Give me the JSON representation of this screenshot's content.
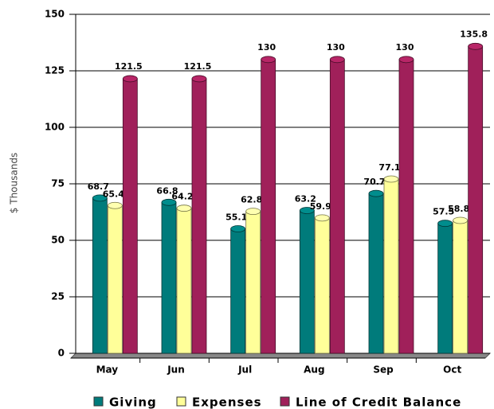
{
  "chart_data": {
    "type": "bar",
    "y_axis_label": "$ Thousands",
    "categories": [
      "May",
      "Jun",
      "Jul",
      "Aug",
      "Sep",
      "Oct"
    ],
    "series": [
      {
        "name": "Giving",
        "color": "#007b7b",
        "values": [
          68.7,
          66.8,
          55.1,
          63.2,
          70.7,
          57.5
        ]
      },
      {
        "name": "Expenses",
        "color": "#ffff99",
        "values": [
          65.4,
          64.2,
          62.8,
          59.9,
          77.1,
          58.8
        ]
      },
      {
        "name": "Line of Credit Balance",
        "color": "#a0205a",
        "values": [
          121.5,
          121.5,
          130,
          130,
          130,
          135.8
        ]
      }
    ],
    "ylim": [
      0,
      150
    ],
    "yticks": [
      0,
      25,
      50,
      75,
      100,
      125,
      150
    ],
    "grid": true
  }
}
